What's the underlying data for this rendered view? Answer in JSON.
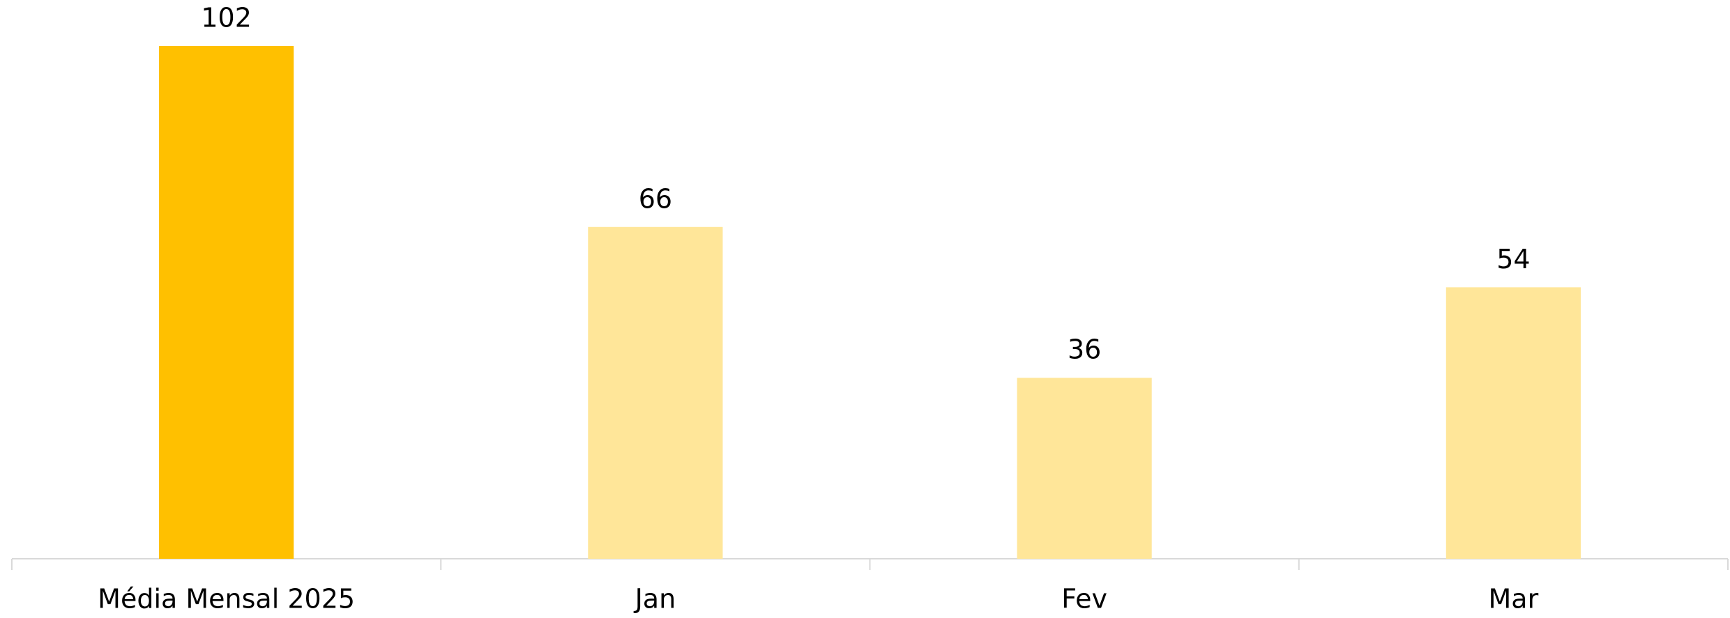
{
  "chart_data": {
    "type": "bar",
    "categories": [
      "Média Mensal 2025",
      "Jan",
      "Fev",
      "Mar"
    ],
    "values": [
      102,
      66,
      36,
      54
    ],
    "colors": [
      "#FFC000",
      "#FFE699",
      "#FFE699",
      "#FFE699"
    ]
  }
}
